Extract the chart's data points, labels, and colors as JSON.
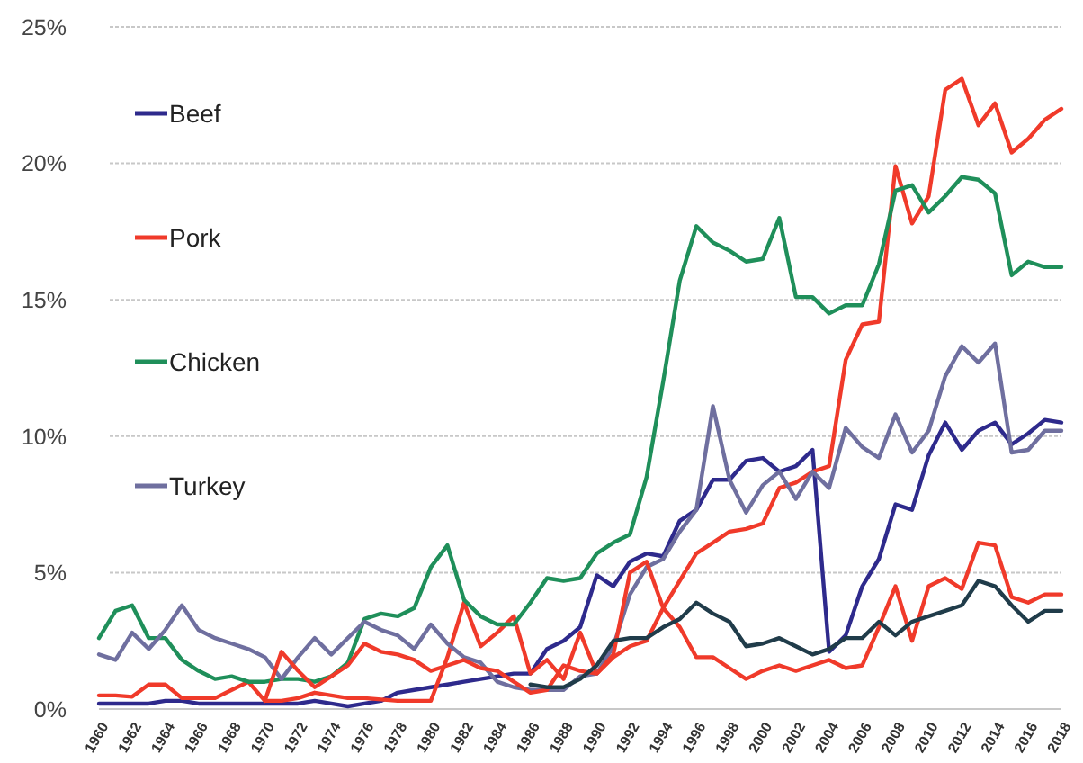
{
  "chart_data": {
    "type": "line",
    "x": [
      1960,
      1961,
      1962,
      1963,
      1964,
      1965,
      1966,
      1967,
      1968,
      1969,
      1970,
      1971,
      1972,
      1973,
      1974,
      1975,
      1976,
      1977,
      1978,
      1979,
      1980,
      1981,
      1982,
      1983,
      1984,
      1985,
      1986,
      1987,
      1988,
      1989,
      1990,
      1991,
      1992,
      1993,
      1994,
      1995,
      1996,
      1997,
      1998,
      1999,
      2000,
      2001,
      2002,
      2003,
      2004,
      2005,
      2006,
      2007,
      2008,
      2009,
      2010,
      2011,
      2012,
      2013,
      2014,
      2015,
      2016,
      2017,
      2018
    ],
    "xlim": [
      1960,
      2018
    ],
    "xticks": [
      1960,
      1962,
      1964,
      1966,
      1968,
      1970,
      1972,
      1974,
      1976,
      1978,
      1980,
      1982,
      1984,
      1986,
      1988,
      1990,
      1992,
      1994,
      1996,
      1998,
      2000,
      2002,
      2004,
      2006,
      2008,
      2010,
      2012,
      2014,
      2016,
      2018
    ],
    "ylim": [
      0,
      25
    ],
    "yticks": [
      {
        "value": 0,
        "label": "0%"
      },
      {
        "value": 5,
        "label": "5%"
      },
      {
        "value": 10,
        "label": "10%"
      },
      {
        "value": 15,
        "label": "15%"
      },
      {
        "value": 20,
        "label": "20%"
      },
      {
        "value": 25,
        "label": "25%"
      }
    ],
    "grid": "y",
    "legend": "top left",
    "marker": "none",
    "line_style": "solid",
    "series": [
      {
        "name": "Beef",
        "color": "#2e2a8c",
        "values": [
          0.2,
          0.2,
          0.2,
          0.2,
          0.3,
          0.3,
          0.2,
          0.2,
          0.2,
          0.2,
          0.2,
          0.2,
          0.2,
          0.3,
          0.2,
          0.1,
          0.2,
          0.3,
          0.6,
          0.7,
          0.8,
          0.9,
          1.0,
          1.1,
          1.2,
          1.3,
          1.3,
          2.2,
          2.5,
          3.0,
          4.9,
          4.5,
          5.4,
          5.7,
          5.6,
          6.9,
          7.3,
          8.4,
          8.4,
          9.1,
          9.2,
          8.7,
          8.9,
          9.5,
          2.1,
          2.7,
          4.5,
          5.5,
          7.5,
          7.3,
          9.3,
          10.5,
          9.5,
          10.2,
          10.5,
          9.7,
          10.1,
          10.6,
          10.5
        ]
      },
      {
        "name": "Pork",
        "color": "#f03a2a",
        "values": [
          0.5,
          0.5,
          0.45,
          0.9,
          0.9,
          0.4,
          0.4,
          0.4,
          0.7,
          1.0,
          0.3,
          0.3,
          0.4,
          0.6,
          0.5,
          0.4,
          0.4,
          0.35,
          0.3,
          0.3,
          0.3,
          1.9,
          3.9,
          2.3,
          2.8,
          3.4,
          1.3,
          1.8,
          1.1,
          2.8,
          1.3,
          1.9,
          2.3,
          2.5,
          3.7,
          4.7,
          5.7,
          6.1,
          6.5,
          6.6,
          6.8,
          8.1,
          8.3,
          8.7,
          8.9,
          12.8,
          14.1,
          14.2,
          19.9,
          17.8,
          18.8,
          22.7,
          23.1,
          21.4,
          22.2,
          20.4,
          20.9,
          21.6,
          22.0
        ]
      },
      {
        "name": "Chicken",
        "color": "#1f8f5a",
        "values": [
          2.6,
          3.6,
          3.8,
          2.6,
          2.6,
          1.8,
          1.4,
          1.1,
          1.2,
          1.0,
          1.0,
          1.1,
          1.1,
          1.0,
          1.2,
          1.7,
          3.3,
          3.5,
          3.4,
          3.7,
          5.2,
          6.0,
          4.0,
          3.4,
          3.1,
          3.1,
          3.9,
          4.8,
          4.7,
          4.8,
          5.7,
          6.1,
          6.4,
          8.5,
          12.0,
          15.7,
          17.7,
          17.1,
          16.8,
          16.4,
          16.5,
          18.0,
          15.1,
          15.1,
          14.5,
          14.8,
          14.8,
          16.3,
          19.0,
          19.2,
          18.2,
          18.8,
          19.5,
          19.4,
          18.9,
          15.9,
          16.4,
          16.2,
          16.2
        ]
      },
      {
        "name": "Turkey",
        "color": "#6f6f9f",
        "values": [
          2.0,
          1.8,
          2.8,
          2.2,
          2.9,
          3.8,
          2.9,
          2.6,
          2.4,
          2.2,
          1.9,
          1.1,
          1.9,
          2.6,
          2.0,
          2.6,
          3.2,
          2.9,
          2.7,
          2.2,
          3.1,
          2.4,
          1.9,
          1.7,
          1.0,
          0.8,
          0.7,
          0.7,
          0.7,
          1.2,
          1.3,
          2.3,
          4.2,
          5.2,
          5.5,
          6.5,
          7.3,
          11.1,
          8.4,
          7.2,
          8.2,
          8.7,
          7.7,
          8.7,
          8.1,
          10.3,
          9.6,
          9.2,
          10.8,
          9.4,
          10.2,
          12.2,
          13.3,
          12.7,
          13.4,
          9.4,
          9.5,
          10.2,
          10.2
        ]
      },
      {
        "color": "#f03a2a",
        "values": [
          null,
          null,
          null,
          null,
          null,
          null,
          null,
          null,
          null,
          null,
          0.3,
          2.1,
          1.4,
          0.8,
          1.2,
          1.6,
          2.4,
          2.1,
          2.0,
          1.8,
          1.4,
          1.6,
          1.8,
          1.5,
          1.4,
          1.0,
          0.6,
          0.7,
          1.6,
          1.4,
          1.3,
          2.0,
          5.0,
          5.4,
          3.7,
          3.0,
          1.9,
          1.9,
          1.5,
          1.1,
          1.4,
          1.6,
          1.4,
          1.6,
          1.8,
          1.5,
          1.6,
          3.0,
          4.5,
          2.5,
          4.5,
          4.8,
          4.4,
          6.1,
          6.0,
          4.1,
          3.9,
          4.2,
          4.2
        ]
      },
      {
        "color": "#203c4a",
        "values": [
          null,
          null,
          null,
          null,
          null,
          null,
          null,
          null,
          null,
          null,
          null,
          null,
          null,
          null,
          null,
          null,
          null,
          null,
          null,
          null,
          null,
          null,
          null,
          null,
          null,
          null,
          0.9,
          0.8,
          0.8,
          1.1,
          1.6,
          2.5,
          2.6,
          2.6,
          3.0,
          3.3,
          3.9,
          3.5,
          3.2,
          2.3,
          2.4,
          2.6,
          2.3,
          2.0,
          2.2,
          2.6,
          2.6,
          3.2,
          2.7,
          3.2,
          3.4,
          3.6,
          3.8,
          4.7,
          4.5,
          3.8,
          3.2,
          3.6,
          3.6
        ]
      }
    ]
  }
}
